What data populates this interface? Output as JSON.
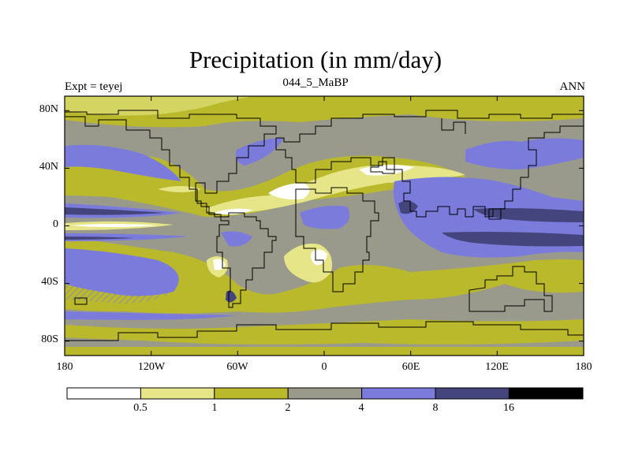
{
  "map": {
    "title": "Precipitation (in mm/day)",
    "subtitle": "044_5_MaBP",
    "left_label": "Expt = teyej",
    "right_label": "ANN",
    "lat_ticks": [
      "80N",
      "40N",
      "0",
      "40S",
      "80S"
    ],
    "lon_ticks": [
      "180",
      "120W",
      "60W",
      "0",
      "60E",
      "120E",
      "180"
    ],
    "colorbar": {
      "levels": [
        "0.5",
        "1",
        "2",
        "4",
        "8",
        "16"
      ],
      "colors": [
        "#ffffff",
        "#e6e689",
        "#b9b92b",
        "#9a9a8c",
        "#7b7bdc",
        "#45457e",
        "#000000"
      ]
    }
  }
}
